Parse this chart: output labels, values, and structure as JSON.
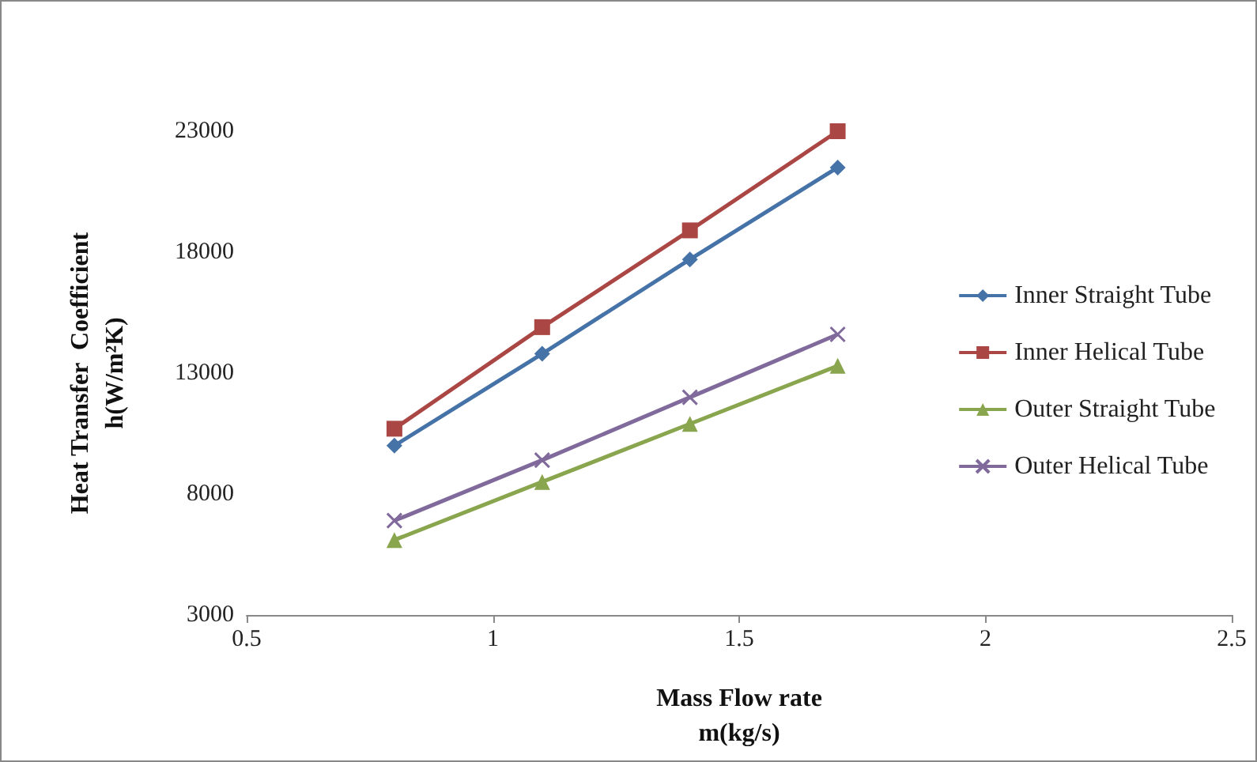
{
  "chart_data": {
    "type": "line",
    "xlabel": "Mass Flow rate\nm(kg/s)",
    "ylabel": "Heat Transfer  Coefficient\nh(W/m²K)",
    "x": [
      0.8,
      1.1,
      1.4,
      1.7
    ],
    "series": [
      {
        "name": "Inner Straight Tube",
        "color": "#4572a7",
        "marker": "diamond",
        "values": [
          10000,
          13800,
          17700,
          21500
        ]
      },
      {
        "name": "Inner Helical Tube",
        "color": "#aa4643",
        "marker": "square",
        "values": [
          10700,
          14900,
          18900,
          23000
        ]
      },
      {
        "name": "Outer Straight Tube",
        "color": "#89a54e",
        "marker": "triangle",
        "values": [
          6100,
          8500,
          10900,
          13300
        ]
      },
      {
        "name": "Outer Helical Tube",
        "color": "#80699b",
        "marker": "cross",
        "values": [
          6900,
          9400,
          12000,
          14600
        ]
      }
    ],
    "xlim": [
      0.5,
      2.5
    ],
    "xticks": [
      0.5,
      1,
      1.5,
      2,
      2.5
    ],
    "ylim": [
      3000,
      23000
    ],
    "yticks": [
      3000,
      8000,
      13000,
      18000,
      23000
    ],
    "grid": false,
    "legend": "right",
    "line_style": "solid"
  }
}
